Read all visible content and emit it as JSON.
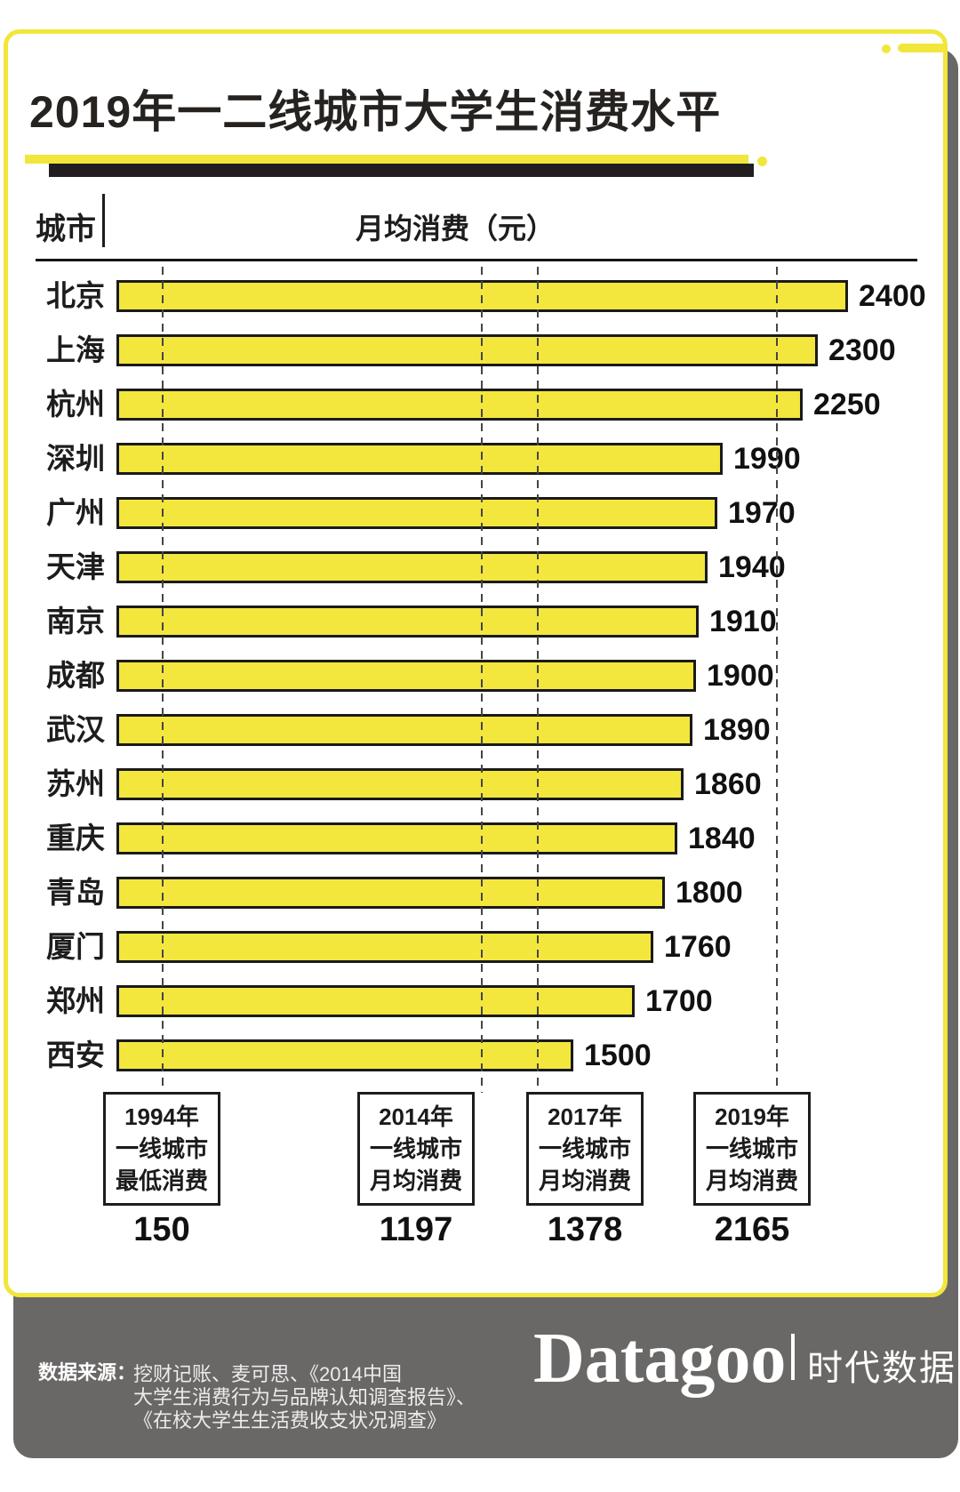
{
  "title": "2019年一二线城市大学生消费水平",
  "columns": {
    "city": "城市",
    "value": "月均消费（元）"
  },
  "chart_data": {
    "type": "bar",
    "orientation": "horizontal",
    "title": "2019年一二线城市大学生消费水平",
    "xlabel": "月均消费（元）",
    "ylabel": "城市",
    "xlim": [
      0,
      2400
    ],
    "grid": false,
    "categories": [
      "北京",
      "上海",
      "杭州",
      "深圳",
      "广州",
      "天津",
      "南京",
      "成都",
      "武汉",
      "苏州",
      "重庆",
      "青岛",
      "厦门",
      "郑州",
      "西安"
    ],
    "values": [
      2400,
      2300,
      2250,
      1990,
      1970,
      1940,
      1910,
      1900,
      1890,
      1860,
      1840,
      1800,
      1760,
      1700,
      1500
    ],
    "reference_lines": [
      {
        "value": 150,
        "value_label": "150",
        "label_lines": [
          "1994年",
          "一线城市",
          "最低消费"
        ]
      },
      {
        "value": 1197,
        "value_label": "1197",
        "label_lines": [
          "2014年",
          "一线城市",
          "月均消费"
        ]
      },
      {
        "value": 1378,
        "value_label": "1378",
        "label_lines": [
          "2017年",
          "一线城市",
          "月均消费"
        ]
      },
      {
        "value": 2165,
        "value_label": "2165",
        "label_lines": [
          "2019年",
          "一线城市",
          "月均消费"
        ]
      }
    ]
  },
  "footer": {
    "source_label": "数据来源：",
    "source_lines": [
      "挖财记账、麦可思、《2014中国",
      "大学生消费行为与品牌认知调查报告》、",
      "《在校大学生生活费收支状况调查》"
    ],
    "logo_text": "Datagoo",
    "logo_cjk": "时代数据"
  },
  "colors": {
    "yellow": "#F1E63C",
    "bar_fill": "#F3E73E",
    "ink": "#231F20",
    "panel_gray": "#6A6867"
  }
}
